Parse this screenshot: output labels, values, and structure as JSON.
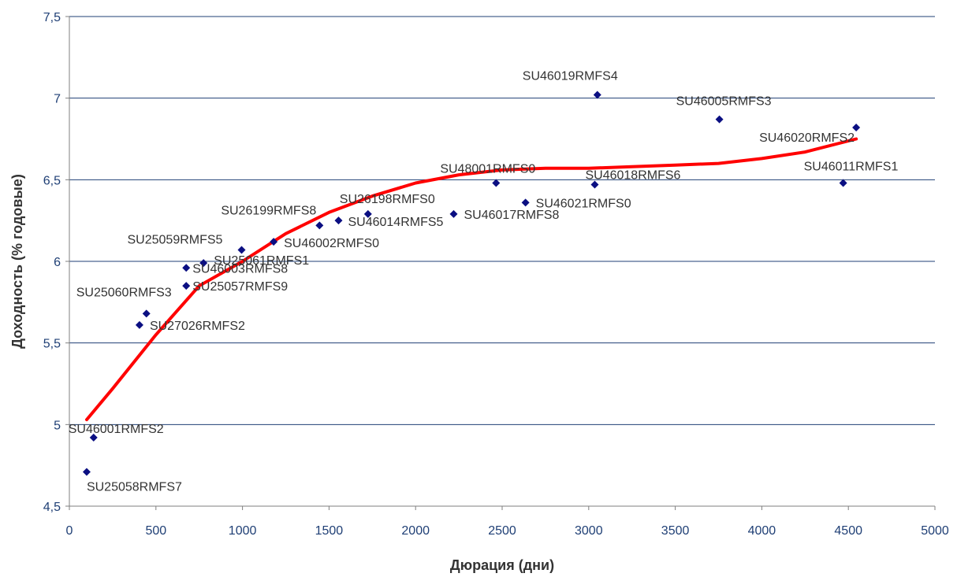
{
  "chart_data": {
    "type": "scatter",
    "title": "",
    "xlabel": "Дюрация (дни)",
    "ylabel": "Доходность (% годовые)",
    "xlim": [
      0,
      5000
    ],
    "ylim": [
      4.5,
      7.5
    ],
    "x_ticks": [
      "0",
      "500",
      "1000",
      "1500",
      "2000",
      "2500",
      "3000",
      "3500",
      "4000",
      "4500",
      "5000"
    ],
    "y_ticks": [
      "4,5",
      "5",
      "5,5",
      "6",
      "6,5",
      "7",
      "7,5"
    ],
    "grid": "horizontal",
    "legend": "none",
    "colors": {
      "points": "#0b0f82",
      "trend": "#ff0000",
      "grid": "#1f3f75",
      "axis_text": "#1f3f75"
    },
    "points": [
      {
        "label": "SU25058RMFS7",
        "x": 100,
        "y": 4.71
      },
      {
        "label": "SU46001RMFS2",
        "x": 140,
        "y": 4.92
      },
      {
        "label": "SU27026RMFS2",
        "x": 405,
        "y": 5.61
      },
      {
        "label": "SU25060RMFS3",
        "x": 445,
        "y": 5.68
      },
      {
        "label": "SU25057RMFS9",
        "x": 675,
        "y": 5.85
      },
      {
        "label": "SU46003RMFS8",
        "x": 675,
        "y": 5.96
      },
      {
        "label": "SU25061RMFS1",
        "x": 775,
        "y": 5.99
      },
      {
        "label": "SU25059RMFS5",
        "x": 995,
        "y": 6.07
      },
      {
        "label": "SU46002RMFS0",
        "x": 1180,
        "y": 6.12
      },
      {
        "label": "SU26199RMFS8",
        "x": 1445,
        "y": 6.22
      },
      {
        "label": "SU46014RMFS5",
        "x": 1555,
        "y": 6.25
      },
      {
        "label": "SU26198RMFS0",
        "x": 1725,
        "y": 6.29
      },
      {
        "label": "SU46017RMFS8",
        "x": 2220,
        "y": 6.29
      },
      {
        "label": "SU48001RMFS0",
        "x": 2465,
        "y": 6.48
      },
      {
        "label": "SU46021RMFS0",
        "x": 2635,
        "y": 6.36
      },
      {
        "label": "SU46018RMFS6",
        "x": 3035,
        "y": 6.47
      },
      {
        "label": "SU46019RMFS4",
        "x": 3050,
        "y": 7.02
      },
      {
        "label": "SU46005RMFS3",
        "x": 3755,
        "y": 6.87
      },
      {
        "label": "SU46011RMFS1",
        "x": 4470,
        "y": 6.48
      },
      {
        "label": "SU46020RMFS2",
        "x": 4545,
        "y": 6.82
      }
    ],
    "trendline": [
      {
        "x": 100,
        "y": 5.03
      },
      {
        "x": 250,
        "y": 5.22
      },
      {
        "x": 500,
        "y": 5.55
      },
      {
        "x": 750,
        "y": 5.85
      },
      {
        "x": 1000,
        "y": 6.0
      },
      {
        "x": 1250,
        "y": 6.17
      },
      {
        "x": 1500,
        "y": 6.3
      },
      {
        "x": 1750,
        "y": 6.4
      },
      {
        "x": 2000,
        "y": 6.48
      },
      {
        "x": 2250,
        "y": 6.53
      },
      {
        "x": 2500,
        "y": 6.56
      },
      {
        "x": 2750,
        "y": 6.57
      },
      {
        "x": 3000,
        "y": 6.57
      },
      {
        "x": 3250,
        "y": 6.58
      },
      {
        "x": 3500,
        "y": 6.59
      },
      {
        "x": 3750,
        "y": 6.6
      },
      {
        "x": 4000,
        "y": 6.63
      },
      {
        "x": 4250,
        "y": 6.67
      },
      {
        "x": 4545,
        "y": 6.75
      }
    ]
  }
}
